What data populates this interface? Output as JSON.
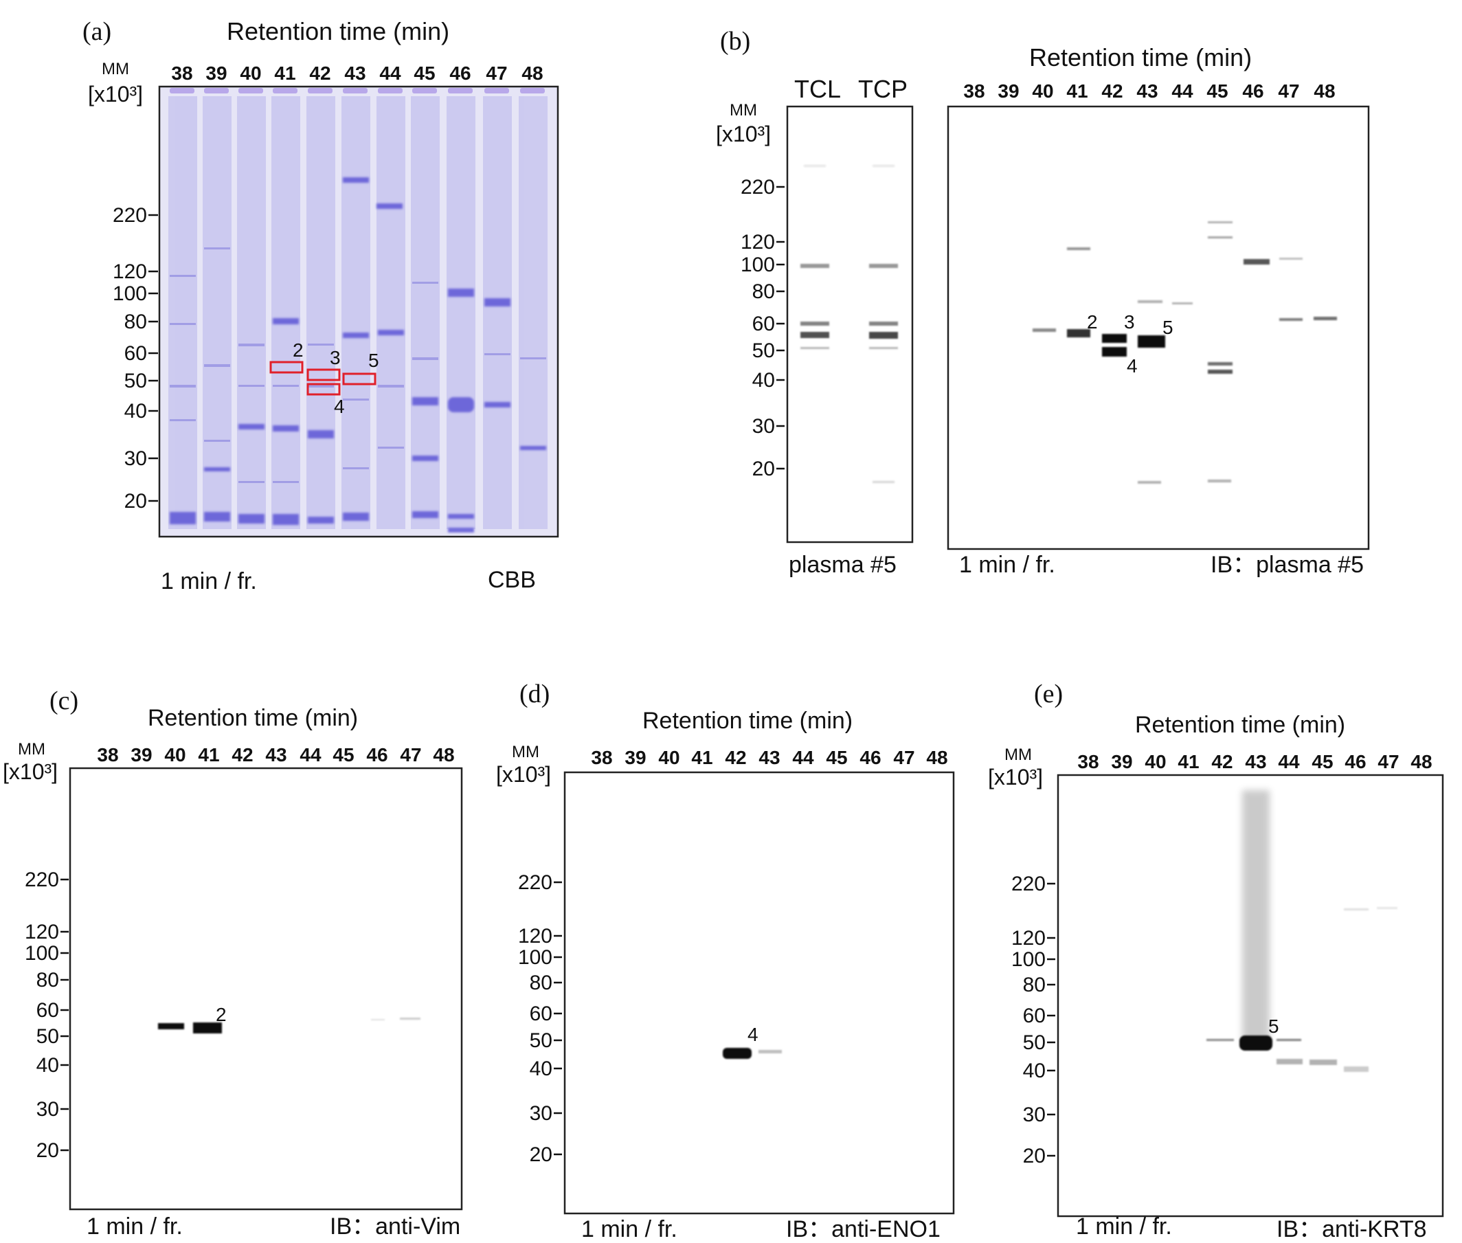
{
  "panels": [
    {
      "id": "a",
      "label": "(a)",
      "title": "Retention time (min)",
      "mm_label": "MM",
      "mm_unit": "[x10³]",
      "lanes": [
        "38",
        "39",
        "40",
        "41",
        "42",
        "43",
        "44",
        "45",
        "46",
        "47",
        "48"
      ],
      "markers": [
        "220",
        "120",
        "100",
        "80",
        "60",
        "50",
        "40",
        "30",
        "20"
      ],
      "footer_left": "1 min / fr.",
      "footer_right": "CBB",
      "band_labels": [
        "2",
        "3",
        "4",
        "5"
      ],
      "stain_color": "#5d56d6",
      "highlight_color": "#e0202a"
    },
    {
      "id": "b",
      "label": "(b)",
      "title": "Retention time (min)",
      "mm_label": "MM",
      "mm_unit": "[x10³]",
      "extra_lanes": [
        "TCL",
        "TCP"
      ],
      "lanes": [
        "38",
        "39",
        "40",
        "41",
        "42",
        "43",
        "44",
        "45",
        "46",
        "47",
        "48"
      ],
      "markers": [
        "220",
        "120",
        "100",
        "80",
        "60",
        "50",
        "40",
        "30",
        "20"
      ],
      "footer_small": "plasma #5",
      "footer_left": "1 min / fr.",
      "footer_right": "IB：plasma #5",
      "band_labels": [
        "2",
        "3",
        "4",
        "5"
      ]
    },
    {
      "id": "c",
      "label": "(c)",
      "title": "Retention time (min)",
      "mm_label": "MM",
      "mm_unit": "[x10³]",
      "lanes": [
        "38",
        "39",
        "40",
        "41",
        "42",
        "43",
        "44",
        "45",
        "46",
        "47",
        "48"
      ],
      "markers": [
        "220",
        "120",
        "100",
        "80",
        "60",
        "50",
        "40",
        "30",
        "20"
      ],
      "footer_left": "1 min / fr.",
      "footer_right": "IB：anti-Vim",
      "band_labels": [
        "2"
      ]
    },
    {
      "id": "d",
      "label": "(d)",
      "title": "Retention time (min)",
      "mm_label": "MM",
      "mm_unit": "[x10³]",
      "lanes": [
        "38",
        "39",
        "40",
        "41",
        "42",
        "43",
        "44",
        "45",
        "46",
        "47",
        "48"
      ],
      "markers": [
        "220",
        "120",
        "100",
        "80",
        "60",
        "50",
        "40",
        "30",
        "20"
      ],
      "footer_left": "1 min / fr.",
      "footer_right": "IB：anti-ENO1",
      "band_labels": [
        "4"
      ]
    },
    {
      "id": "e",
      "label": "(e)",
      "title": "Retention time (min)",
      "mm_label": "MM",
      "mm_unit": "[x10³]",
      "lanes": [
        "38",
        "39",
        "40",
        "41",
        "42",
        "43",
        "44",
        "45",
        "46",
        "47",
        "48"
      ],
      "markers": [
        "220",
        "120",
        "100",
        "80",
        "60",
        "50",
        "40",
        "30",
        "20"
      ],
      "footer_left": "1 min / fr.",
      "footer_right": "IB：anti-KRT8",
      "band_labels": [
        "5"
      ]
    }
  ]
}
